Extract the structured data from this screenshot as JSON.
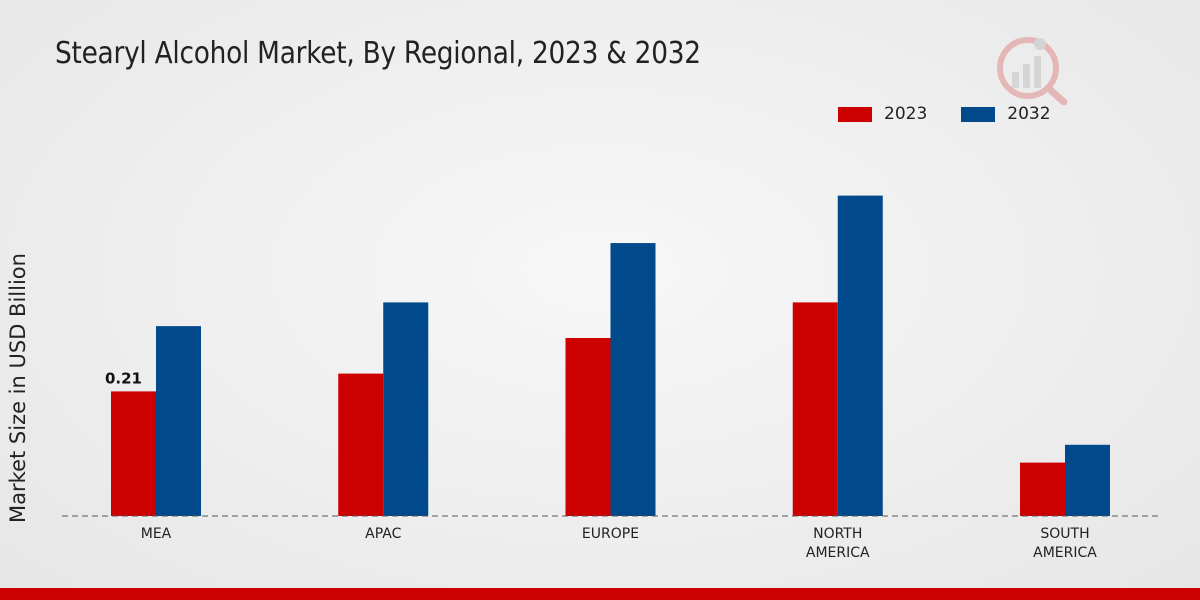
{
  "chart_data": {
    "type": "bar",
    "title": "Stearyl Alcohol Market, By Regional, 2023 & 2032",
    "xlabel": "",
    "ylabel": "Market Size in USD Billion",
    "categories": [
      "MEA",
      "APAC",
      "EUROPE",
      "NORTH AMERICA",
      "SOUTH AMERICA"
    ],
    "category_lines": [
      [
        "MEA"
      ],
      [
        "APAC"
      ],
      [
        "EUROPE"
      ],
      [
        "NORTH",
        "AMERICA"
      ],
      [
        "SOUTH",
        "AMERICA"
      ]
    ],
    "series": [
      {
        "name": "2023",
        "color": "#cc0000",
        "values": [
          0.21,
          0.24,
          0.3,
          0.36,
          0.09
        ]
      },
      {
        "name": "2032",
        "color": "#004a8c",
        "values": [
          0.32,
          0.36,
          0.46,
          0.54,
          0.12
        ]
      }
    ],
    "data_labels": [
      {
        "series": 0,
        "index": 0,
        "text": "0.21"
      }
    ],
    "ylim": [
      0,
      0.6
    ],
    "legend_position": "top-right",
    "grid": false
  },
  "legend": {
    "items": [
      {
        "label": "2023",
        "color": "#cc0000"
      },
      {
        "label": "2032",
        "color": "#004a8c"
      }
    ]
  }
}
